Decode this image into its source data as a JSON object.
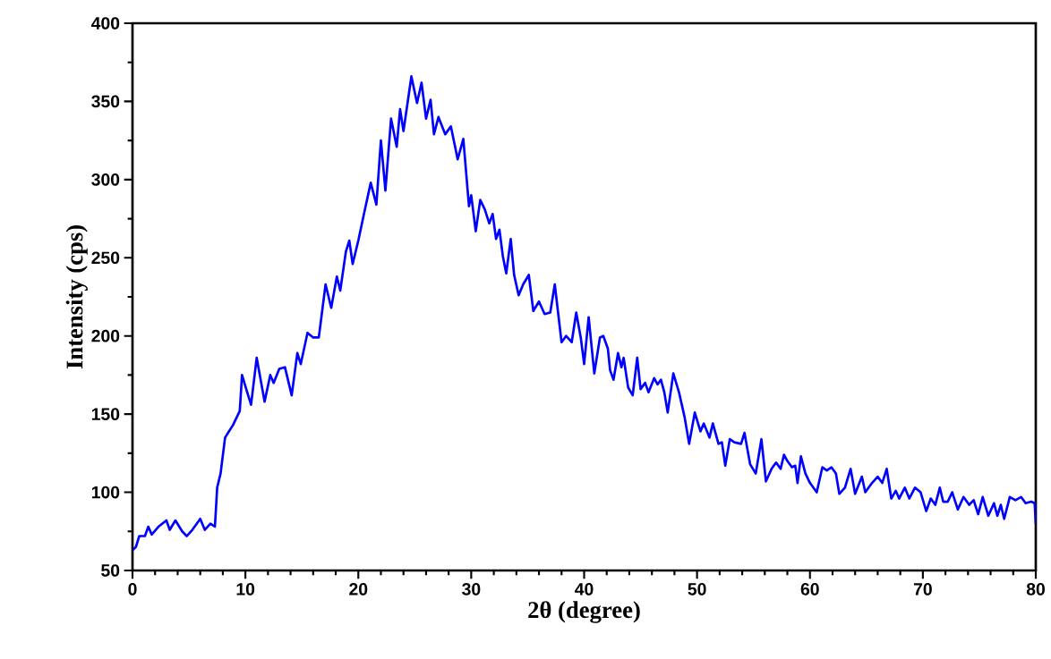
{
  "chart_data": {
    "type": "line",
    "xlabel": "2θ (degree)",
    "ylabel": "Intensity (cps)",
    "x": [
      0,
      0.3,
      0.6,
      1.1,
      1.4,
      1.7,
      2.3,
      3.0,
      3.3,
      3.8,
      4.4,
      4.8,
      5.3,
      6.0,
      6.4,
      6.9,
      7.3,
      7.5,
      7.8,
      8.2,
      8.9,
      9.5,
      9.7,
      10.2,
      10.5,
      11.0,
      11.7,
      12.2,
      12.5,
      13.0,
      13.5,
      14.1,
      14.6,
      14.9,
      15.5,
      16.0,
      16.5,
      17.1,
      17.6,
      18.1,
      18.4,
      18.9,
      19.2,
      19.5,
      20.0,
      20.5,
      21.1,
      21.6,
      22.0,
      22.4,
      22.9,
      23.4,
      23.7,
      24.0,
      24.7,
      25.2,
      25.6,
      26.0,
      26.4,
      26.7,
      27.1,
      27.7,
      28.2,
      28.8,
      29.3,
      29.8,
      30.0,
      30.4,
      30.8,
      31.2,
      31.6,
      31.9,
      32.2,
      32.5,
      32.8,
      33.1,
      33.5,
      33.8,
      34.2,
      34.6,
      35.1,
      35.5,
      36.0,
      36.5,
      37.0,
      37.4,
      38.0,
      38.4,
      38.9,
      39.3,
      39.7,
      40.0,
      40.4,
      40.9,
      41.4,
      41.7,
      42.1,
      42.3,
      42.6,
      43.0,
      43.3,
      43.5,
      43.9,
      44.3,
      44.7,
      45.0,
      45.4,
      45.7,
      46.2,
      46.5,
      46.8,
      47.1,
      47.4,
      47.9,
      48.4,
      48.9,
      49.3,
      49.8,
      50.3,
      50.6,
      51.1,
      51.4,
      51.9,
      52.2,
      52.5,
      52.9,
      53.3,
      53.9,
      54.2,
      54.7,
      55.2,
      55.7,
      56.1,
      56.6,
      57.0,
      57.4,
      57.7,
      58.0,
      58.4,
      58.7,
      58.9,
      59.2,
      59.6,
      60.0,
      60.6,
      61.1,
      61.5,
      61.9,
      62.3,
      62.6,
      63.1,
      63.6,
      64.0,
      64.6,
      64.9,
      65.5,
      66.0,
      66.4,
      66.8,
      67.2,
      67.6,
      67.9,
      68.4,
      68.8,
      69.3,
      69.8,
      70.3,
      70.7,
      71.1,
      71.5,
      71.8,
      72.2,
      72.6,
      73.1,
      73.6,
      74.1,
      74.5,
      74.9,
      75.3,
      75.8,
      76.3,
      76.6,
      76.9,
      77.2,
      77.7,
      78.2,
      78.7,
      79.1,
      79.6,
      79.9,
      80
    ],
    "series": [
      {
        "color": "#0000ff",
        "values": [
          63,
          65,
          72,
          72,
          78,
          73,
          78,
          82,
          76,
          82,
          75,
          72,
          76,
          83,
          76,
          80,
          78,
          103,
          112,
          135,
          143,
          152,
          175,
          163,
          156,
          186,
          158,
          175,
          170,
          179,
          180,
          162,
          189,
          182,
          202,
          199,
          199,
          233,
          218,
          238,
          229,
          254,
          261,
          246,
          261,
          278,
          298,
          284,
          325,
          293,
          339,
          321,
          345,
          331,
          366,
          349,
          362,
          339,
          351,
          329,
          340,
          329,
          334,
          313,
          326,
          283,
          290,
          267,
          287,
          281,
          272,
          278,
          262,
          268,
          251,
          240,
          262,
          239,
          226,
          233,
          239,
          216,
          222,
          214,
          215,
          233,
          196,
          200,
          196,
          215,
          199,
          182,
          212,
          176,
          199,
          200,
          192,
          178,
          172,
          189,
          180,
          186,
          167,
          162,
          186,
          166,
          170,
          164,
          173,
          169,
          172,
          164,
          151,
          176,
          164,
          148,
          131,
          151,
          139,
          144,
          135,
          144,
          131,
          132,
          117,
          134,
          132,
          131,
          138,
          118,
          112,
          134,
          107,
          115,
          119,
          115,
          124,
          120,
          116,
          117,
          106,
          123,
          112,
          106,
          100,
          116,
          114,
          116,
          112,
          99,
          103,
          115,
          99,
          110,
          100,
          106,
          110,
          106,
          115,
          96,
          101,
          96,
          103,
          96,
          103,
          100,
          88,
          96,
          92,
          103,
          94,
          94,
          100,
          89,
          97,
          92,
          95,
          86,
          97,
          85,
          93,
          85,
          92,
          83,
          97,
          95,
          97,
          93,
          94,
          93,
          80
        ]
      }
    ],
    "xlim": [
      0,
      80
    ],
    "ylim": [
      50,
      400
    ],
    "xticks": [
      0,
      10,
      20,
      30,
      40,
      50,
      60,
      70,
      80
    ],
    "yticks": [
      50,
      100,
      150,
      200,
      250,
      300,
      350,
      400
    ],
    "grid": false,
    "line_style": "solid"
  }
}
